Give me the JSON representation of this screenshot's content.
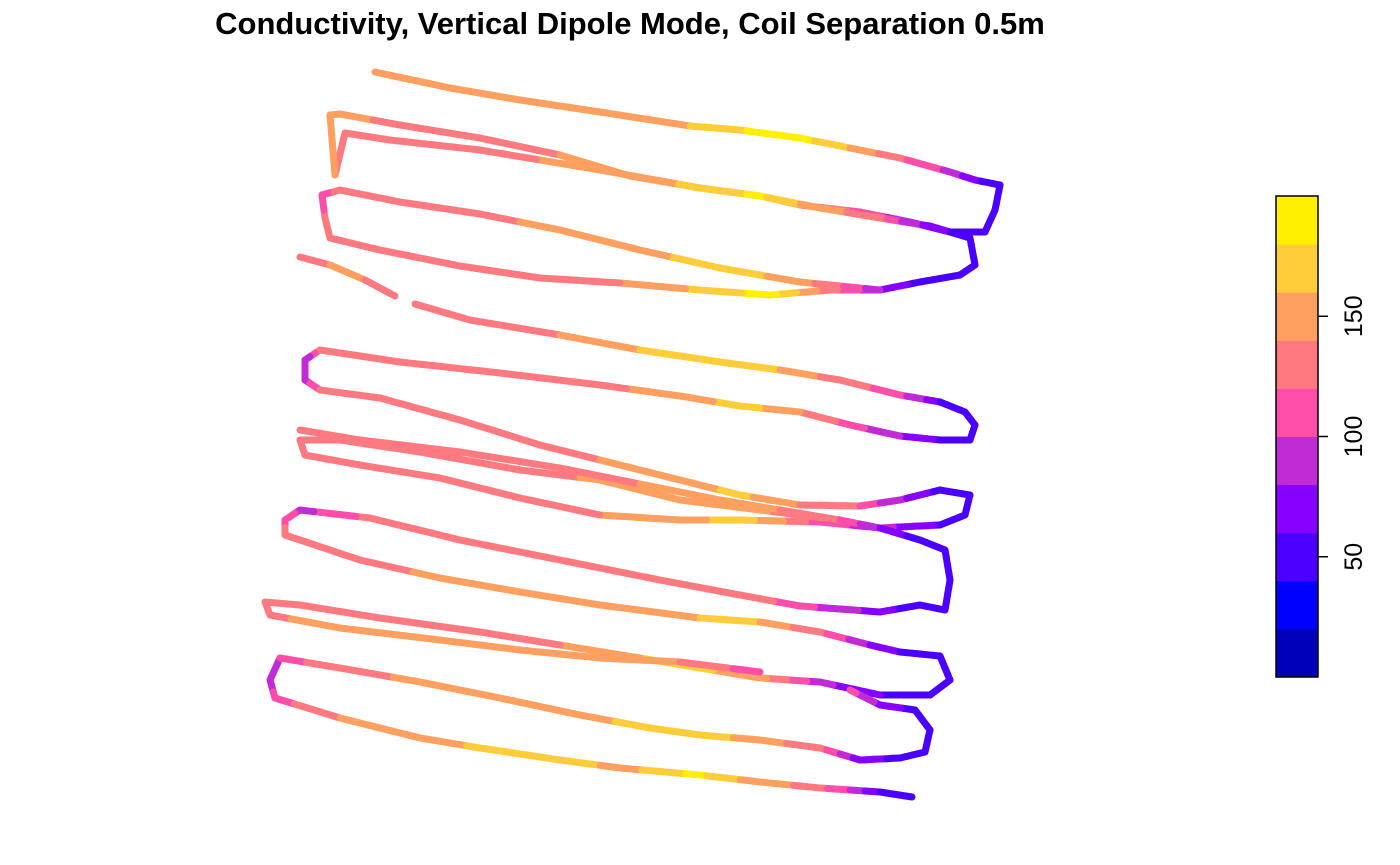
{
  "title": "Conductivity, Vertical Dipole Mode, Coil Separation 0.5m",
  "legend": {
    "bins": [
      {
        "min": 0,
        "max": 20,
        "color": "#0000BB"
      },
      {
        "min": 20,
        "max": 40,
        "color": "#0000FF"
      },
      {
        "min": 40,
        "max": 60,
        "color": "#4B00FF"
      },
      {
        "min": 60,
        "max": 80,
        "color": "#8800FF"
      },
      {
        "min": 80,
        "max": 100,
        "color": "#C02BD6"
      },
      {
        "min": 100,
        "max": 120,
        "color": "#FF4DAA"
      },
      {
        "min": 120,
        "max": 140,
        "color": "#FF7A80"
      },
      {
        "min": 140,
        "max": 160,
        "color": "#FFA060"
      },
      {
        "min": 160,
        "max": 180,
        "color": "#FFCC3A"
      },
      {
        "min": 180,
        "max": 200,
        "color": "#FFF000"
      }
    ],
    "ticks": [
      {
        "value": 50,
        "label": "50"
      },
      {
        "value": 100,
        "label": "100"
      },
      {
        "value": 150,
        "label": "150"
      }
    ]
  },
  "chart_data": {
    "type": "scatter",
    "title": "Conductivity, Vertical Dipole Mode, Coil Separation 0.5m",
    "value_range": [
      0,
      200
    ],
    "grid": false,
    "legend_placement": "right",
    "tracks": [
      {
        "points": [
          [
            375,
            72,
            150
          ],
          [
            450,
            88,
            148
          ],
          [
            520,
            100,
            150
          ],
          [
            600,
            112,
            150
          ],
          [
            690,
            126,
            160
          ],
          [
            740,
            130,
            178
          ],
          [
            800,
            138,
            190
          ],
          [
            850,
            148,
            160
          ],
          [
            900,
            158,
            125
          ],
          [
            950,
            172,
            95
          ],
          [
            975,
            180,
            65
          ],
          [
            1000,
            185,
            42
          ],
          [
            995,
            210,
            40
          ],
          [
            985,
            232,
            40
          ]
        ]
      },
      {
        "points": [
          [
            985,
            232,
            40
          ],
          [
            950,
            232,
            55
          ],
          [
            910,
            222,
            80
          ],
          [
            860,
            212,
            115
          ],
          [
            800,
            205,
            140
          ],
          [
            760,
            196,
            175
          ],
          [
            700,
            188,
            160
          ],
          [
            600,
            170,
            150
          ],
          [
            480,
            150,
            132
          ],
          [
            390,
            140,
            130
          ],
          [
            345,
            133,
            130
          ],
          [
            335,
            175,
            140
          ]
        ]
      },
      {
        "points": [
          [
            335,
            175,
            140
          ],
          [
            330,
            115,
            152
          ],
          [
            340,
            114,
            150
          ],
          [
            400,
            125,
            130
          ],
          [
            480,
            138,
            130
          ],
          [
            560,
            155,
            140
          ],
          [
            630,
            176,
            150
          ],
          [
            700,
            188,
            165
          ],
          [
            760,
            196,
            185
          ],
          [
            820,
            208,
            150
          ],
          [
            880,
            218,
            125
          ],
          [
            930,
            226,
            70
          ],
          [
            970,
            238,
            50
          ],
          [
            975,
            265,
            40
          ],
          [
            960,
            275,
            45
          ],
          [
            920,
            282,
            50
          ],
          [
            880,
            290,
            80
          ]
        ]
      },
      {
        "points": [
          [
            880,
            290,
            80
          ],
          [
            830,
            290,
            125
          ],
          [
            770,
            295,
            190
          ],
          [
            700,
            290,
            165
          ],
          [
            620,
            283,
            140
          ],
          [
            540,
            278,
            135
          ],
          [
            460,
            266,
            120
          ],
          [
            380,
            250,
            128
          ],
          [
            330,
            238,
            125
          ],
          [
            325,
            218,
            128
          ],
          [
            322,
            195,
            95
          ],
          [
            340,
            190,
            130
          ],
          [
            400,
            202,
            130
          ],
          [
            480,
            214,
            135
          ],
          [
            560,
            230,
            145
          ],
          [
            640,
            250,
            150
          ],
          [
            720,
            268,
            175
          ],
          [
            800,
            282,
            150
          ],
          [
            880,
            290,
            90
          ]
        ]
      },
      {
        "points": [
          [
            300,
            257,
            138
          ],
          [
            330,
            265,
            140
          ],
          [
            365,
            280,
            140
          ],
          [
            395,
            296,
            138
          ]
        ]
      },
      {
        "points": [
          [
            415,
            304,
            130
          ],
          [
            470,
            320,
            128
          ],
          [
            560,
            335,
            140
          ],
          [
            640,
            350,
            160
          ],
          [
            720,
            362,
            175
          ],
          [
            780,
            370,
            160
          ],
          [
            840,
            380,
            130
          ],
          [
            900,
            395,
            110
          ],
          [
            940,
            402,
            60
          ],
          [
            965,
            412,
            55
          ],
          [
            975,
            425,
            50
          ],
          [
            970,
            440,
            45
          ],
          [
            940,
            440,
            55
          ],
          [
            900,
            436,
            80
          ],
          [
            850,
            425,
            110
          ],
          [
            800,
            412,
            140
          ],
          [
            740,
            406,
            168
          ],
          [
            680,
            396,
            150
          ],
          [
            600,
            385,
            135
          ],
          [
            500,
            373,
            130
          ],
          [
            400,
            362,
            130
          ],
          [
            320,
            350,
            128
          ],
          [
            305,
            360,
            90
          ],
          [
            305,
            380,
            90
          ],
          [
            320,
            390,
            125
          ],
          [
            380,
            398,
            128
          ],
          [
            460,
            420,
            130
          ],
          [
            540,
            445,
            125
          ],
          [
            600,
            460,
            140
          ],
          [
            680,
            480,
            150
          ],
          [
            740,
            495,
            165
          ],
          [
            800,
            505,
            140
          ],
          [
            860,
            506,
            120
          ],
          [
            900,
            500,
            85
          ],
          [
            940,
            490,
            55
          ],
          [
            970,
            495,
            45
          ],
          [
            965,
            515,
            50
          ],
          [
            940,
            525,
            55
          ],
          [
            880,
            528,
            85
          ],
          [
            820,
            522,
            110
          ],
          [
            740,
            520,
            170
          ],
          [
            680,
            520,
            150
          ],
          [
            600,
            515,
            140
          ],
          [
            520,
            498,
            130
          ],
          [
            440,
            478,
            130
          ],
          [
            360,
            465,
            128
          ],
          [
            305,
            455,
            135
          ],
          [
            300,
            440,
            140
          ],
          [
            340,
            440,
            128
          ],
          [
            420,
            452,
            128
          ],
          [
            520,
            470,
            125
          ],
          [
            600,
            480,
            145
          ],
          [
            680,
            500,
            160
          ],
          [
            760,
            510,
            145
          ],
          [
            840,
            520,
            115
          ]
        ]
      },
      {
        "points": [
          [
            300,
            430,
            140
          ],
          [
            360,
            440,
            130
          ],
          [
            460,
            452,
            128
          ],
          [
            560,
            468,
            130
          ],
          [
            640,
            484,
            140
          ],
          [
            720,
            500,
            155
          ],
          [
            780,
            510,
            140
          ],
          [
            840,
            520,
            120
          ],
          [
            880,
            528,
            80
          ],
          [
            920,
            540,
            50
          ],
          [
            945,
            550,
            45
          ],
          [
            950,
            580,
            42
          ],
          [
            945,
            610,
            40
          ],
          [
            920,
            605,
            45
          ],
          [
            880,
            612,
            70
          ],
          [
            800,
            606,
            105
          ],
          [
            740,
            595,
            140
          ],
          [
            660,
            580,
            135
          ],
          [
            560,
            560,
            135
          ],
          [
            460,
            540,
            130
          ],
          [
            370,
            518,
            128
          ],
          [
            300,
            510,
            95
          ],
          [
            285,
            520,
            110
          ],
          [
            285,
            535,
            128
          ],
          [
            360,
            560,
            130
          ],
          [
            440,
            578,
            145
          ],
          [
            520,
            592,
            150
          ],
          [
            600,
            605,
            140
          ],
          [
            700,
            618,
            160
          ],
          [
            760,
            622,
            160
          ],
          [
            820,
            632,
            125
          ],
          [
            870,
            645,
            80
          ],
          [
            900,
            652,
            60
          ],
          [
            940,
            656,
            45
          ],
          [
            950,
            680,
            42
          ],
          [
            930,
            695,
            45
          ],
          [
            880,
            695,
            60
          ],
          [
            820,
            682,
            85
          ],
          [
            760,
            678,
            145
          ],
          [
            700,
            668,
            165
          ],
          [
            640,
            658,
            160
          ],
          [
            560,
            645,
            140
          ],
          [
            480,
            632,
            135
          ],
          [
            380,
            618,
            130
          ],
          [
            300,
            605,
            128
          ],
          [
            265,
            602,
            125
          ],
          [
            270,
            615,
            138
          ],
          [
            340,
            628,
            145
          ],
          [
            440,
            640,
            140
          ],
          [
            520,
            650,
            160
          ],
          [
            600,
            658,
            140
          ],
          [
            680,
            662,
            140
          ],
          [
            760,
            672,
            110
          ]
        ]
      },
      {
        "points": [
          [
            280,
            658,
            85
          ],
          [
            270,
            680,
            85
          ],
          [
            275,
            698,
            110
          ],
          [
            340,
            718,
            140
          ],
          [
            420,
            738,
            145
          ],
          [
            480,
            748,
            165
          ],
          [
            560,
            760,
            180
          ],
          [
            620,
            768,
            150
          ],
          [
            700,
            775,
            185
          ],
          [
            760,
            782,
            150
          ],
          [
            820,
            788,
            130
          ],
          [
            850,
            790,
            100
          ],
          [
            880,
            792,
            60
          ],
          [
            912,
            797,
            40
          ]
        ]
      },
      {
        "points": [
          [
            280,
            658,
            110
          ],
          [
            340,
            668,
            130
          ],
          [
            420,
            682,
            145
          ],
          [
            500,
            698,
            140
          ],
          [
            580,
            715,
            150
          ],
          [
            650,
            728,
            170
          ],
          [
            700,
            735,
            175
          ],
          [
            760,
            740,
            150
          ],
          [
            820,
            748,
            125
          ],
          [
            860,
            760,
            75
          ],
          [
            900,
            758,
            50
          ],
          [
            925,
            752,
            45
          ],
          [
            930,
            730,
            45
          ],
          [
            915,
            710,
            55
          ],
          [
            880,
            705,
            70
          ],
          [
            850,
            690,
            105
          ]
        ]
      }
    ]
  }
}
